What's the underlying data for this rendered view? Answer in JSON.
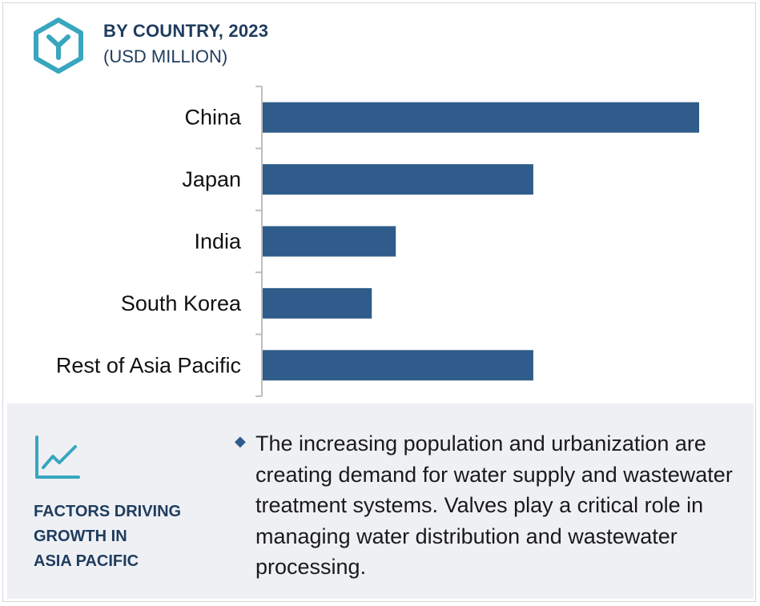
{
  "header": {
    "icon": "hexagon-y-logo-icon",
    "title": "BY COUNTRY, 2023",
    "subtitle": "(USD MILLION)"
  },
  "chart_data": {
    "type": "bar",
    "orientation": "horizontal",
    "categories": [
      "China",
      "Japan",
      "India",
      "South Korea",
      "Rest of Asia Pacific"
    ],
    "values": [
      100,
      62,
      30.5,
      25,
      62
    ],
    "value_scale": "relative (no axis values shown)",
    "xlim": [
      0,
      100
    ],
    "bar_color": "#2f5c8a",
    "grid": false,
    "legend": "none",
    "title": "BY COUNTRY, 2023",
    "unit": "(USD MILLION)"
  },
  "factors": {
    "icon": "line-chart-trend-icon",
    "heading_lines": [
      "FACTORS DRIVING",
      "GROWTH IN",
      "ASIA PACIFIC"
    ],
    "bullet_icon": "diamond-bullet-icon",
    "description": "The increasing population and urbanization are creating demand for water supply and wastewater treatment systems. Valves play a critical role in managing water distribution and wastewater processing."
  },
  "colors": {
    "accent_teal": "#38a6bf",
    "heading_navy": "#1f3c5e",
    "bar_blue": "#2f5c8a",
    "panel_bg": "#eef0f4"
  }
}
